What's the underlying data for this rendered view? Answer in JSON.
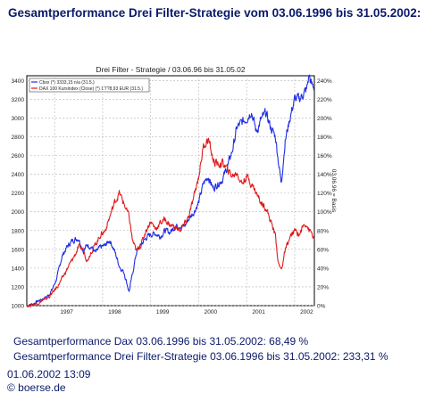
{
  "page": {
    "title": "Gesamtperformance Drei Filter-Strategie vom 03.06.1996 bis 31.05.2002:",
    "summary_line1": "Gesamtperformance Dax 03.06.1996 bis 31.05.2002: 68,49 %",
    "summary_line2": "Gesamtperformance Drei Filter-Strategie 03.06.1996 bis 31.05.2002: 233,31 %",
    "timestamp": "01.06.2002 13:09",
    "copyright": "© boerse.de"
  },
  "chart_data": {
    "type": "line",
    "title": "Drei Filter - Strategie / 03.06.96 bis 31.05.02",
    "y_left_ticks": [
      1000,
      1200,
      1400,
      1600,
      1800,
      2000,
      2200,
      2400,
      2600,
      2800,
      3000,
      3200,
      3400
    ],
    "y_left_ylim": [
      1000,
      3450
    ],
    "y_right_ticks": [
      "0%",
      "20%",
      "40%",
      "60%",
      "80%",
      "100%",
      "120%",
      "140%",
      "160%",
      "180%",
      "200%",
      "220%",
      "240%"
    ],
    "y_right_label": "03.06.96 = Basis",
    "x_ticks": [
      1997,
      1998,
      1999,
      2000,
      2001,
      2002
    ],
    "xlim": [
      1996.42,
      2002.41
    ],
    "grid": true,
    "legend_placement": "top-left",
    "legend": [
      "Cbsx (*) 3333,15 n/a (31.5.)",
      "DAX 100 Kursindex (Close) (*) 1'7?8,93 EUR (31.5.)"
    ],
    "series": [
      {
        "name": "Cbsx (*) 3333,15 n/a (31.5.)",
        "color": "#1f2de6",
        "x": [
          1996.42,
          1996.55,
          1996.7,
          1996.85,
          1996.95,
          1997.05,
          1997.15,
          1997.25,
          1997.38,
          1997.5,
          1997.6,
          1997.68,
          1997.76,
          1997.85,
          1997.95,
          1998.05,
          1998.15,
          1998.25,
          1998.35,
          1998.45,
          1998.55,
          1998.62,
          1998.7,
          1998.8,
          1998.9,
          1999.0,
          1999.1,
          1999.2,
          1999.3,
          1999.4,
          1999.5,
          1999.6,
          1999.7,
          1999.8,
          1999.9,
          2000.0,
          2000.1,
          2000.2,
          2000.3,
          2000.4,
          2000.5,
          2000.6,
          2000.7,
          2000.8,
          2000.9,
          2001.0,
          2001.1,
          2001.2,
          2001.3,
          2001.4,
          2001.5,
          2001.6,
          2001.66,
          2001.72,
          2001.8,
          2001.9,
          2002.0,
          2002.1,
          2002.18,
          2002.25,
          2002.3,
          2002.35,
          2002.41
        ],
        "values": [
          1000,
          1020,
          1060,
          1100,
          1170,
          1300,
          1520,
          1620,
          1700,
          1720,
          1580,
          1650,
          1630,
          1560,
          1620,
          1640,
          1700,
          1580,
          1420,
          1350,
          1150,
          1330,
          1560,
          1650,
          1720,
          1760,
          1770,
          1740,
          1800,
          1780,
          1840,
          1860,
          1840,
          1930,
          2000,
          2100,
          2300,
          2380,
          2250,
          2300,
          2350,
          2480,
          2650,
          2900,
          2950,
          3000,
          3080,
          2850,
          2980,
          3050,
          2900,
          2800,
          2550,
          2300,
          2750,
          3000,
          3200,
          3200,
          3260,
          3300,
          3460,
          3350,
          3330
        ]
      },
      {
        "name": "DAX 100 Kursindex (Close) (*) 1'7?8,93 EUR (31.5.)",
        "color": "#e01a1a",
        "x": [
          1996.42,
          1996.55,
          1996.7,
          1996.85,
          1996.95,
          1997.05,
          1997.15,
          1997.25,
          1997.38,
          1997.5,
          1997.6,
          1997.68,
          1997.76,
          1997.85,
          1997.95,
          1998.05,
          1998.15,
          1998.25,
          1998.35,
          1998.45,
          1998.55,
          1998.62,
          1998.7,
          1998.8,
          1998.9,
          1999.0,
          1999.1,
          1999.2,
          1999.3,
          1999.4,
          1999.5,
          1999.6,
          1999.7,
          1999.8,
          1999.9,
          2000.0,
          2000.1,
          2000.2,
          2000.3,
          2000.4,
          2000.5,
          2000.6,
          2000.7,
          2000.8,
          2000.9,
          2001.0,
          2001.1,
          2001.2,
          2001.3,
          2001.4,
          2001.5,
          2001.6,
          2001.66,
          2001.72,
          2001.8,
          2001.9,
          2002.0,
          2002.1,
          2002.18,
          2002.25,
          2002.3,
          2002.35,
          2002.41
        ],
        "values": [
          1000,
          1010,
          1040,
          1080,
          1130,
          1200,
          1280,
          1380,
          1500,
          1620,
          1600,
          1480,
          1580,
          1650,
          1750,
          1800,
          1950,
          2100,
          2200,
          2080,
          1950,
          1700,
          1580,
          1650,
          1800,
          1900,
          1820,
          1880,
          1920,
          1860,
          1840,
          1800,
          1860,
          1960,
          2150,
          2380,
          2700,
          2780,
          2550,
          2500,
          2520,
          2450,
          2380,
          2420,
          2300,
          2380,
          2300,
          2200,
          2100,
          2050,
          1900,
          1750,
          1450,
          1380,
          1580,
          1720,
          1800,
          1760,
          1850,
          1880,
          1800,
          1780,
          1690
        ]
      }
    ]
  }
}
